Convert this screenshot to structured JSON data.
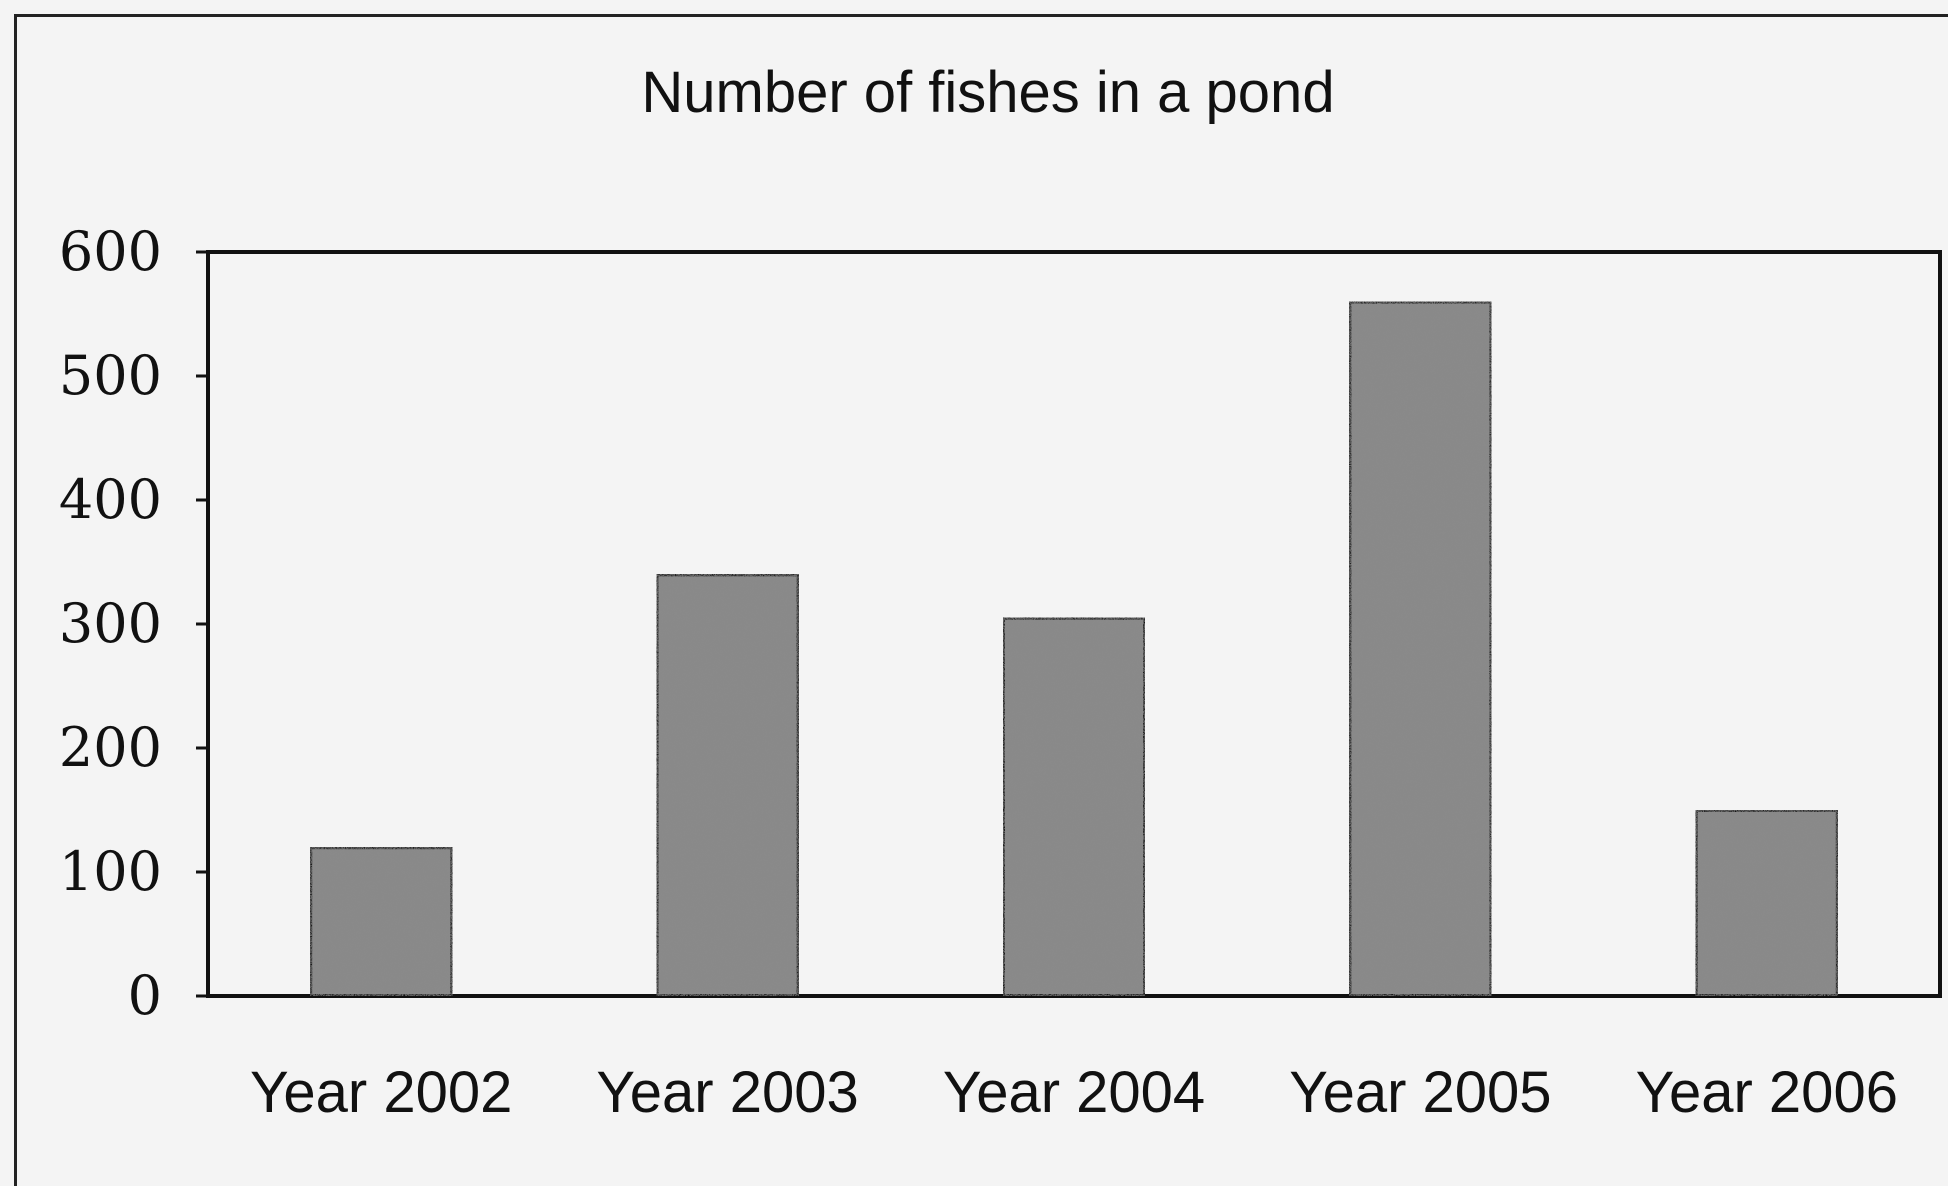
{
  "chart_data": {
    "type": "bar",
    "title": "Number of fishes in a pond",
    "categories": [
      "Year 2002",
      "Year 2003",
      "Year 2004",
      "Year 2005",
      "Year 2006"
    ],
    "values": [
      120,
      340,
      305,
      560,
      150
    ],
    "ylim": [
      0,
      600
    ],
    "yticks": [
      0,
      100,
      200,
      300,
      400,
      500,
      600
    ],
    "xlabel": "",
    "ylabel": "",
    "grid": false,
    "legend": "none",
    "bar_color": "#8a8a8a",
    "bar_outline": "#111111"
  }
}
